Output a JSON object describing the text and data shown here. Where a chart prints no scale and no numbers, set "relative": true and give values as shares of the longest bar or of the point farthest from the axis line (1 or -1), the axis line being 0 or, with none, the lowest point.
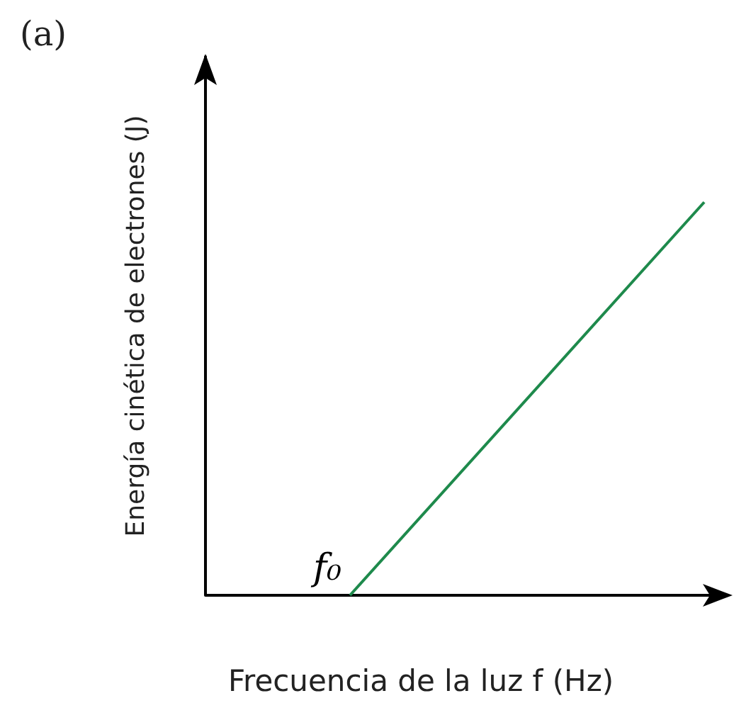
{
  "chart_data": {
    "type": "line",
    "relative": true,
    "xlabel": "Frecuencia de la luz f (Hz)",
    "ylabel": "Energía cinética de electrones (J)",
    "annotations": [
      "(a)",
      "f₀"
    ],
    "tick_labels": false,
    "categories": [
      null,
      null
    ],
    "series": [
      {
        "color": "#1e8a4c",
        "values": [
          0,
          1
        ]
      }
    ],
    "marker": "none",
    "line_style": "solid"
  }
}
